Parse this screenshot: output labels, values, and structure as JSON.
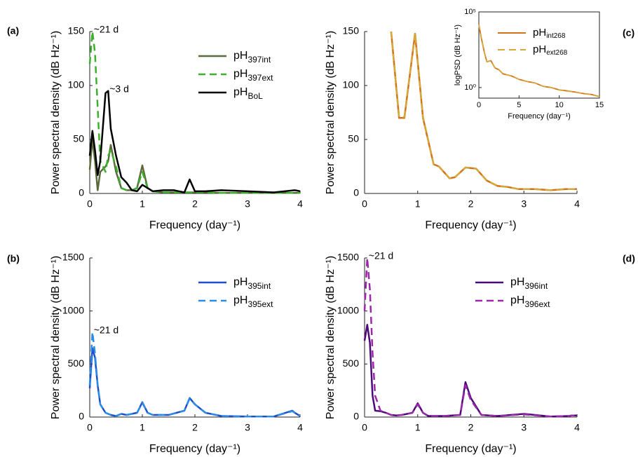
{
  "chart_data": [
    {
      "type": "line",
      "label": "(a)",
      "x_label": "Frequency (day⁻¹)",
      "y_label": "Power spectral density (dB Hz⁻¹)",
      "xlim": [
        0,
        4
      ],
      "ylim": [
        0,
        150
      ],
      "xticks": [
        0,
        1,
        2,
        3,
        4
      ],
      "yticks": [
        0,
        50,
        100,
        150
      ],
      "legend": "upper right",
      "x": [
        0,
        0.05,
        0.1,
        0.15,
        0.2,
        0.3,
        0.35,
        0.4,
        0.5,
        0.6,
        0.7,
        0.8,
        0.9,
        1,
        1.1,
        1.2,
        1.4,
        1.6,
        1.8,
        1.9,
        2,
        2.2,
        2.5,
        3,
        3.5,
        3.9,
        4
      ],
      "series": [
        {
          "name": "pH397int",
          "color": "#5b6b3c",
          "style": "solid",
          "values": [
            22,
            50,
            30,
            3,
            20,
            25,
            30,
            45,
            20,
            5,
            3,
            3,
            5,
            26,
            5,
            2,
            1,
            1,
            1,
            1,
            1,
            1,
            0.5,
            0.5,
            0.5,
            0.5,
            0.5
          ]
        },
        {
          "name": "pH397ext",
          "color": "#3cb02c",
          "style": "dashed",
          "values": [
            120,
            150,
            130,
            80,
            30,
            20,
            35,
            40,
            25,
            5,
            3,
            3,
            5,
            20,
            5,
            2,
            1,
            1,
            1,
            1,
            1,
            1,
            0.5,
            0.5,
            0.5,
            0.5,
            0.5
          ]
        },
        {
          "name": "pHBoL",
          "color": "#000000",
          "style": "solid",
          "values": [
            35,
            58,
            40,
            17,
            30,
            93,
            95,
            60,
            35,
            15,
            10,
            3,
            2,
            8,
            5,
            2,
            3,
            3,
            1,
            13,
            2,
            2,
            3,
            2,
            1,
            3,
            2
          ]
        }
      ],
      "annotations": [
        {
          "text": "~21 d",
          "x": 0.05,
          "y": 150
        },
        {
          "text": "~3 d",
          "x": 0.35,
          "y": 95
        }
      ]
    },
    {
      "type": "line",
      "label": "(c)",
      "x_label": "Frequency (day⁻¹)",
      "y_label": "Power spectral density (dB Hz⁻¹)",
      "xlim": [
        0,
        4
      ],
      "ylim": [
        0,
        150
      ],
      "xticks": [
        0,
        1,
        2,
        3,
        4
      ],
      "yticks": [
        0,
        50,
        100,
        150
      ],
      "x": [
        0.5,
        0.65,
        0.75,
        0.95,
        1.1,
        1.3,
        1.4,
        1.6,
        1.7,
        1.9,
        2.1,
        2.3,
        2.5,
        2.7,
        2.9,
        3.2,
        3.5,
        3.8,
        4
      ],
      "series": [
        {
          "color": "#d4721a",
          "style": "solid",
          "values": [
            150,
            70,
            70,
            148,
            70,
            27,
            25,
            14,
            15,
            24,
            23,
            12,
            7,
            6,
            4,
            4,
            3,
            4,
            4
          ]
        },
        {
          "color": "#d4a83a",
          "style": "dashed",
          "values": [
            150,
            71,
            71,
            149,
            71,
            27,
            25,
            14,
            15,
            24,
            23,
            12,
            7,
            6,
            4,
            4,
            3,
            4,
            4
          ]
        }
      ]
    },
    {
      "type": "line",
      "label": "(b)",
      "x_label": "Frequency (day⁻¹)",
      "y_label": "Power spectral density (dB Hz⁻¹)",
      "xlim": [
        0,
        4
      ],
      "ylim": [
        0,
        1500
      ],
      "xticks": [
        0,
        1,
        2,
        3,
        4
      ],
      "yticks": [
        0,
        500,
        1000,
        1500
      ],
      "legend": "upper right",
      "x": [
        0,
        0.05,
        0.1,
        0.15,
        0.2,
        0.3,
        0.4,
        0.5,
        0.6,
        0.7,
        0.8,
        0.9,
        1,
        1.1,
        1.2,
        1.5,
        1.8,
        1.9,
        2,
        2.2,
        2.5,
        3,
        3.5,
        3.85,
        3.9,
        4
      ],
      "series": [
        {
          "name": "pH395int",
          "color": "#1f4fc8",
          "style": "solid",
          "values": [
            270,
            650,
            560,
            300,
            120,
            40,
            20,
            10,
            30,
            20,
            30,
            40,
            140,
            40,
            20,
            20,
            60,
            180,
            120,
            40,
            10,
            5,
            5,
            60,
            40,
            10
          ]
        },
        {
          "name": "pH395ext",
          "color": "#2b8ce8",
          "style": "dashed",
          "values": [
            300,
            800,
            600,
            300,
            120,
            40,
            20,
            10,
            30,
            20,
            30,
            40,
            135,
            40,
            20,
            20,
            60,
            175,
            120,
            40,
            10,
            5,
            5,
            55,
            40,
            10
          ]
        }
      ],
      "annotations": [
        {
          "text": "~21 d",
          "x": 0.05,
          "y": 800
        }
      ]
    },
    {
      "type": "line",
      "label": "(d)",
      "x_label": "Frequency (day⁻¹)",
      "y_label": "Power spectral density (dB Hz⁻¹)",
      "xlim": [
        0,
        4
      ],
      "ylim": [
        0,
        1500
      ],
      "xticks": [
        0,
        1,
        2,
        3,
        4
      ],
      "yticks": [
        0,
        500,
        1000,
        1500
      ],
      "legend": "upper right",
      "x": [
        0,
        0.05,
        0.1,
        0.15,
        0.2,
        0.3,
        0.4,
        0.5,
        0.6,
        0.7,
        0.8,
        0.9,
        1,
        1.1,
        1.2,
        1.5,
        1.8,
        1.9,
        2,
        2.2,
        2.5,
        3,
        3.5,
        3.85,
        3.9,
        4
      ],
      "series": [
        {
          "name": "pH396int",
          "color": "#4b0a7a",
          "style": "solid",
          "values": [
            720,
            870,
            700,
            200,
            60,
            55,
            40,
            20,
            15,
            20,
            30,
            40,
            130,
            40,
            10,
            10,
            20,
            330,
            180,
            20,
            10,
            30,
            5,
            10,
            15,
            15
          ]
        },
        {
          "name": "pH396ext",
          "color": "#9a28a8",
          "style": "dashed",
          "values": [
            1000,
            1500,
            1200,
            600,
            200,
            60,
            40,
            20,
            15,
            20,
            30,
            40,
            120,
            40,
            10,
            10,
            20,
            300,
            160,
            20,
            10,
            25,
            5,
            10,
            15,
            15
          ]
        }
      ],
      "annotations": [
        {
          "text": "~21 d",
          "x": 0.05,
          "y": 1500
        }
      ]
    },
    {
      "type": "line",
      "x_label": "Frequency (day⁻¹)",
      "y_label": "logPSD (dB Hz⁻¹)",
      "yscale": "log",
      "xlim": [
        0,
        15
      ],
      "ylim": [
        0.2,
        100000
      ],
      "xticks": [
        0,
        5,
        10,
        15
      ],
      "yticks": [
        {
          "value": 1,
          "label": "10⁰"
        },
        {
          "value": 100000,
          "label": "10⁵"
        }
      ],
      "legend": "upper right",
      "x": [
        0,
        0.3,
        0.7,
        1,
        1.5,
        2,
        2.5,
        3,
        4,
        5,
        6,
        7,
        8,
        9,
        10,
        11,
        12,
        13,
        14,
        15
      ],
      "series": [
        {
          "name": "pHint268",
          "color": "#d4721a",
          "style": "solid",
          "values": [
            15000,
            2000,
            200,
            50,
            60,
            20,
            15,
            8,
            6,
            3.5,
            2.5,
            2,
            1.2,
            1,
            0.7,
            0.6,
            0.5,
            0.4,
            0.35,
            0.25
          ]
        },
        {
          "name": "pHext268",
          "color": "#d4a83a",
          "style": "dashed",
          "values": [
            15000,
            2000,
            200,
            50,
            60,
            20,
            15,
            8,
            6,
            3.5,
            2.5,
            2,
            1.2,
            1,
            0.7,
            0.6,
            0.5,
            0.4,
            0.35,
            0.25
          ]
        }
      ]
    }
  ]
}
